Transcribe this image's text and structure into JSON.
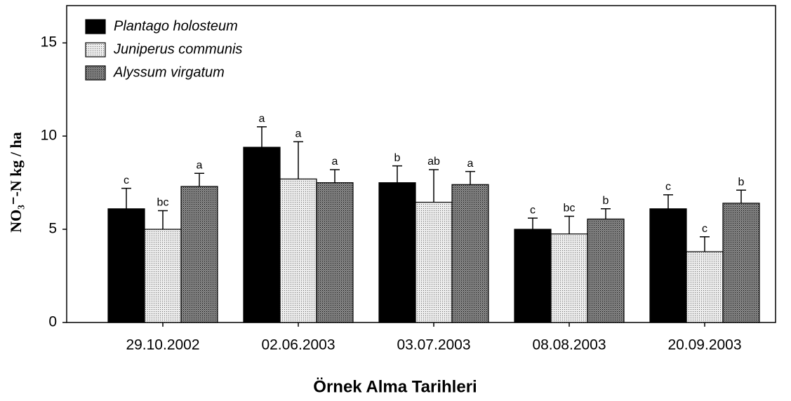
{
  "chart_data": {
    "type": "bar",
    "y_label": "NO₃⁻-N  kg / ha",
    "x_label": "Örnek Alma Tarihleri",
    "categories": [
      "29.10.2002",
      "02.06.2003",
      "03.07.2003",
      "08.08.2003",
      "20.09.2003"
    ],
    "ylim": [
      0,
      17
    ],
    "yticks": [
      0,
      5,
      10,
      15
    ],
    "legend_position": "upper left",
    "series": [
      {
        "name": "Plantago holosteum",
        "color": "#000000",
        "values": [
          6.1,
          9.4,
          7.5,
          5.0,
          6.1
        ],
        "errors": [
          1.1,
          1.1,
          0.9,
          0.6,
          0.75
        ],
        "labels": [
          "c",
          "a",
          "b",
          "c",
          "c"
        ]
      },
      {
        "name": "Juniperus communis",
        "color": "#ececec",
        "values": [
          5.0,
          7.7,
          6.45,
          4.75,
          3.8
        ],
        "errors": [
          1.0,
          2.0,
          1.75,
          0.95,
          0.8
        ],
        "labels": [
          "bc",
          "a",
          "ab",
          "bc",
          "c"
        ]
      },
      {
        "name": "Alyssum virgatum",
        "color": "#8c8c8c",
        "values": [
          7.3,
          7.5,
          7.4,
          5.55,
          6.4
        ],
        "errors": [
          0.7,
          0.7,
          0.7,
          0.55,
          0.7
        ],
        "labels": [
          "a",
          "a",
          "a",
          "b",
          "b"
        ]
      }
    ]
  }
}
